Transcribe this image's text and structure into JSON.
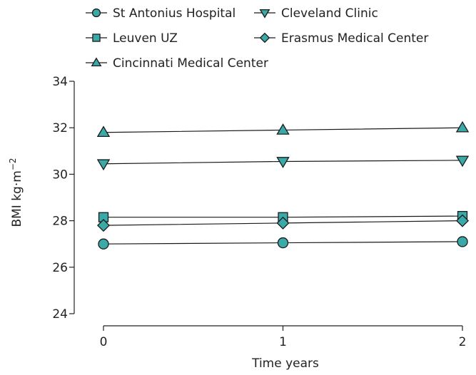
{
  "chart_data": {
    "type": "line",
    "xlabel": "Time years",
    "ylabel": "BMI kg·m",
    "ylabel_superscript": "−2",
    "x": [
      0,
      1,
      2
    ],
    "x_tick_labels": [
      "0",
      "1",
      "2"
    ],
    "ylim": [
      24,
      34
    ],
    "y_ticks": [
      24,
      26,
      28,
      30,
      32,
      34
    ],
    "grid": false,
    "legend_position": "top",
    "series": [
      {
        "name": "St Antonius Hospital",
        "marker": "circle",
        "values": [
          27.0,
          27.05,
          27.1
        ]
      },
      {
        "name": "Cleveland Clinic",
        "marker": "triangle-down",
        "values": [
          30.45,
          30.55,
          30.6
        ]
      },
      {
        "name": "Leuven UZ",
        "marker": "square",
        "values": [
          28.15,
          28.15,
          28.2
        ]
      },
      {
        "name": "Erasmus Medical Center",
        "marker": "diamond",
        "values": [
          27.8,
          27.9,
          28.0
        ]
      },
      {
        "name": "Cincinnati Medical Center",
        "marker": "triangle-up",
        "values": [
          31.8,
          31.9,
          32.0
        ]
      }
    ],
    "colors": {
      "marker_fill": "#3aa9a8",
      "line": "#1a1a1a",
      "axis": "#222222"
    }
  }
}
